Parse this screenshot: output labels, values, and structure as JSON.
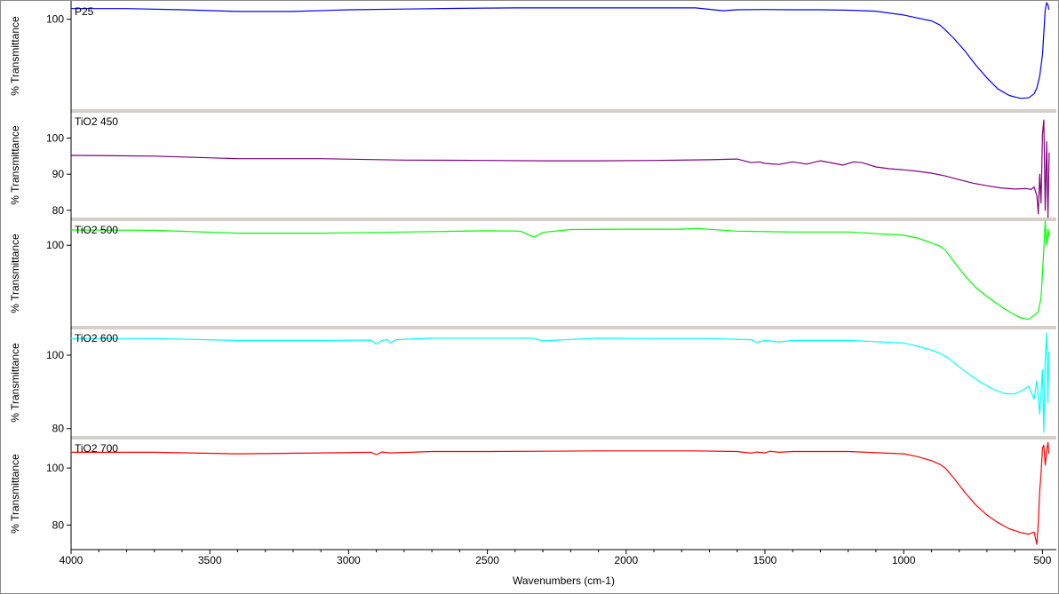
{
  "chart_data": {
    "type": "line",
    "xlabel": "Wavenumbers (cm-1)",
    "xlim": [
      4000,
      450
    ],
    "x_ticks": [
      4000,
      3500,
      3000,
      2500,
      2000,
      1500,
      1000,
      500
    ],
    "x_ticks_text": [
      "4000",
      "3500",
      "3000",
      "2500",
      "2000",
      "1500",
      "1000",
      "500"
    ],
    "grid": false,
    "panels": [
      {
        "name": "P25",
        "ylabel": "% Transmittance",
        "ylim": [
          62,
          107
        ],
        "yticks": [
          100
        ],
        "yticks_text": [
          "100"
        ],
        "color": "#0000ff",
        "x": [
          4000,
          3800,
          3600,
          3400,
          3200,
          3000,
          2800,
          2600,
          2400,
          2200,
          2000,
          1850,
          1750,
          1650,
          1600,
          1500,
          1400,
          1300,
          1200,
          1100,
          1000,
          950,
          900,
          870,
          850,
          820,
          780,
          740,
          700,
          660,
          620,
          580,
          550,
          530,
          520,
          510,
          500,
          495,
          490,
          485,
          480,
          477
        ],
        "y": [
          104.5,
          104.5,
          104,
          103.3,
          103.3,
          104,
          104.3,
          104.6,
          104.8,
          104.8,
          104.8,
          104.8,
          104.8,
          103.6,
          104,
          104.1,
          104,
          104,
          103.8,
          103.4,
          101.8,
          100.5,
          99.3,
          97.6,
          95.5,
          92,
          86.7,
          80.6,
          75.2,
          70.5,
          67.8,
          66.6,
          66.8,
          68.5,
          71,
          76,
          85,
          94,
          104,
          107,
          106,
          104
        ]
      },
      {
        "name": "TiO2 450",
        "ylabel": "% Transmittance",
        "ylim": [
          78,
          107
        ],
        "yticks": [
          100,
          90,
          80
        ],
        "yticks_text": [
          "100",
          "90",
          "80"
        ],
        "color": "#800080",
        "x": [
          4000,
          3700,
          3400,
          3100,
          2800,
          2500,
          2300,
          2100,
          1900,
          1700,
          1600,
          1580,
          1550,
          1520,
          1500,
          1450,
          1400,
          1350,
          1300,
          1250,
          1220,
          1180,
          1150,
          1100,
          1050,
          1000,
          950,
          900,
          850,
          800,
          750,
          700,
          650,
          600,
          560,
          540,
          530,
          520,
          515,
          510,
          505,
          500,
          495,
          490,
          485,
          480,
          476
        ],
        "y": [
          95.2,
          95,
          94.3,
          94.3,
          93.9,
          93.8,
          93.7,
          93.7,
          93.8,
          94,
          94.2,
          93.8,
          93.2,
          93.4,
          93,
          92.7,
          93.4,
          92.8,
          93.7,
          93,
          92.5,
          93.4,
          93.2,
          92,
          91.5,
          91.2,
          90.8,
          90.3,
          89.5,
          88.5,
          87.5,
          86.8,
          86.2,
          85.9,
          86,
          85.8,
          86.5,
          84,
          79,
          90,
          82,
          101,
          105,
          80,
          99,
          78,
          96
        ]
      },
      {
        "name": "TiO2 500",
        "ylabel": "% Transmittance",
        "ylim": [
          80,
          106
        ],
        "yticks": [
          100
        ],
        "yticks_text": [
          "100"
        ],
        "color": "#00ff00",
        "x": [
          4000,
          3700,
          3400,
          3100,
          2800,
          2500,
          2380,
          2350,
          2330,
          2300,
          2200,
          2000,
          1800,
          1750,
          1600,
          1400,
          1200,
          1000,
          950,
          900,
          870,
          850,
          820,
          780,
          740,
          700,
          660,
          620,
          580,
          550,
          530,
          515,
          505,
          500,
          495,
          490,
          485,
          480,
          476
        ],
        "y": [
          103.8,
          103.7,
          103,
          103,
          103.3,
          103.6,
          103.5,
          102.5,
          102,
          103.2,
          103.9,
          104,
          104,
          104.2,
          103.5,
          103.3,
          103.3,
          102.5,
          101.8,
          100.6,
          99.8,
          98.8,
          96,
          92.5,
          89.5,
          87.3,
          85.3,
          83.5,
          82,
          81.6,
          82.6,
          83.5,
          87,
          93,
          99,
          106,
          100,
          104,
          102
        ]
      },
      {
        "name": "TiO2 600",
        "ylabel": "% Transmittance",
        "ylim": [
          78,
          107
        ],
        "yticks": [
          100,
          80
        ],
        "yticks_text": [
          "100",
          "80"
        ],
        "color": "#00ffff",
        "x": [
          4000,
          3700,
          3400,
          3100,
          2920,
          2900,
          2880,
          2860,
          2850,
          2830,
          2700,
          2500,
          2340,
          2300,
          2100,
          1900,
          1700,
          1550,
          1530,
          1500,
          1450,
          1400,
          1200,
          1000,
          950,
          900,
          870,
          840,
          800,
          760,
          720,
          680,
          640,
          600,
          570,
          550,
          530,
          520,
          510,
          500,
          495,
          490,
          485,
          480,
          477
        ],
        "y": [
          104.5,
          104.5,
          104,
          104,
          104.1,
          103,
          104,
          104.2,
          103.3,
          104.2,
          104.6,
          104.6,
          104.6,
          103.9,
          104.6,
          104.5,
          104.5,
          104.2,
          103.5,
          104,
          103.6,
          104,
          104,
          103.3,
          102.4,
          101.4,
          100.5,
          99.2,
          96.8,
          94.5,
          92.5,
          90.8,
          89.6,
          89.4,
          90.5,
          91.5,
          88,
          93,
          84,
          96,
          79,
          99,
          106,
          87,
          101
        ]
      },
      {
        "name": "TiO2 700",
        "ylabel": "% Transmittance",
        "ylim": [
          72,
          110
        ],
        "yticks": [
          100,
          80
        ],
        "yticks_text": [
          "100",
          "80"
        ],
        "color": "#ff0000",
        "x": [
          4000,
          3700,
          3400,
          3100,
          2920,
          2900,
          2880,
          2850,
          2700,
          2500,
          2300,
          2100,
          1900,
          1750,
          1600,
          1550,
          1530,
          1500,
          1480,
          1450,
          1400,
          1200,
          1000,
          950,
          900,
          870,
          850,
          820,
          780,
          740,
          700,
          660,
          620,
          580,
          550,
          530,
          520,
          515,
          510,
          505,
          500,
          495,
          490,
          485,
          480,
          477
        ],
        "y": [
          105.5,
          105.5,
          105,
          105.3,
          105.5,
          104.7,
          105.6,
          105.3,
          105.8,
          105.8,
          105.9,
          106,
          106,
          106,
          105.8,
          105.2,
          105.6,
          105.3,
          105.9,
          105.5,
          105.8,
          105.8,
          105,
          104,
          102.6,
          101.3,
          100,
          96.5,
          91.5,
          87,
          83.5,
          80.8,
          78.7,
          77.4,
          76.8,
          77.5,
          73.2,
          81,
          92,
          98,
          107,
          108,
          101,
          106,
          109,
          105
        ]
      }
    ]
  }
}
